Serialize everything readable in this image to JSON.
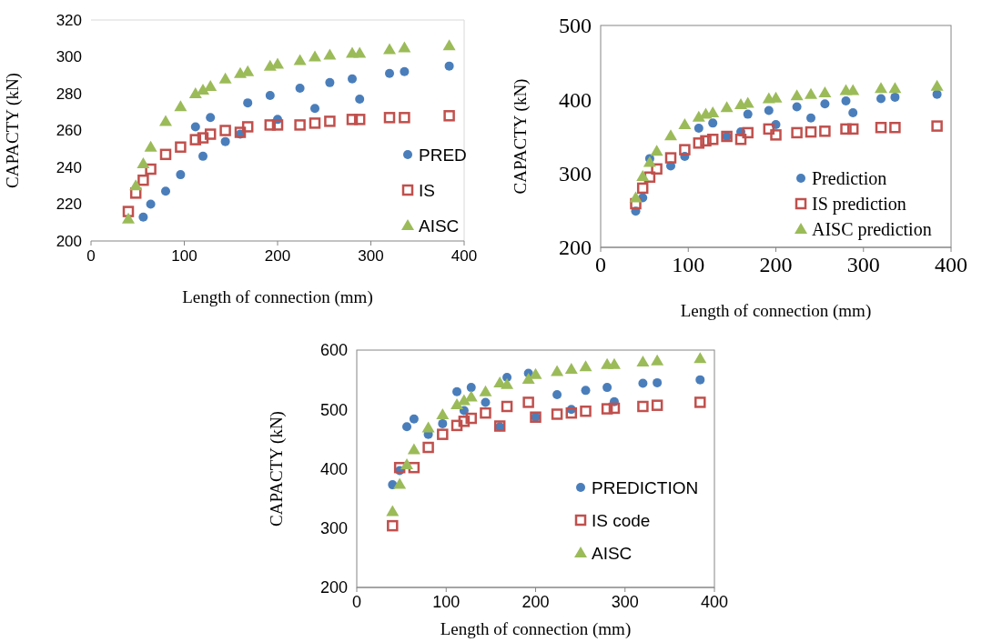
{
  "chart_data": [
    {
      "type": "scatter",
      "xlabel": "Length of connection (mm)",
      "ylabel": "CAPACTY (kN)",
      "xlim": [
        0,
        400
      ],
      "xticks": [
        0,
        100,
        200,
        300,
        400
      ],
      "ylim": [
        200,
        320
      ],
      "yticks": [
        200,
        220,
        240,
        260,
        280,
        300,
        320
      ],
      "legend": "bottom right",
      "grid": false,
      "series": [
        {
          "name": "PRED",
          "color": "#4a7ebb",
          "marker": "circle",
          "x": [
            56,
            64,
            80,
            96,
            112,
            120,
            128,
            144,
            160,
            168,
            192,
            200,
            224,
            240,
            256,
            280,
            288,
            320,
            336,
            384
          ],
          "values": [
            213,
            220,
            227,
            236,
            262,
            246,
            267,
            254,
            258,
            275,
            279,
            266,
            283,
            272,
            286,
            288,
            277,
            291,
            292,
            295
          ]
        },
        {
          "name": "IS",
          "color": "#c0504d",
          "marker": "square",
          "x": [
            40,
            48,
            56,
            64,
            80,
            96,
            112,
            120,
            128,
            144,
            160,
            168,
            192,
            200,
            224,
            240,
            256,
            280,
            288,
            320,
            336,
            384
          ],
          "values": [
            216,
            226,
            233,
            239,
            247,
            251,
            255,
            256,
            258,
            260,
            259,
            262,
            263,
            263,
            263,
            264,
            265,
            266,
            266,
            267,
            267,
            268
          ]
        },
        {
          "name": "AISC",
          "color": "#9bbb59",
          "marker": "triangle",
          "x": [
            40,
            48,
            56,
            64,
            80,
            96,
            112,
            120,
            128,
            144,
            160,
            168,
            192,
            200,
            224,
            240,
            256,
            280,
            288,
            320,
            336,
            384
          ],
          "values": [
            212,
            230,
            242,
            251,
            265,
            273,
            280,
            282,
            284,
            288,
            291,
            292,
            295,
            296,
            298,
            300,
            301,
            302,
            302,
            304,
            305,
            306
          ]
        }
      ]
    },
    {
      "type": "scatter",
      "xlabel": "Length of connection (mm)",
      "ylabel": "CAPACTY (kN)",
      "xlim": [
        0,
        400
      ],
      "xticks": [
        0,
        100,
        200,
        300,
        400
      ],
      "ylim": [
        200,
        500
      ],
      "yticks": [
        200,
        300,
        400,
        500
      ],
      "legend": "bottom right",
      "grid": false,
      "series": [
        {
          "name": "Prediction",
          "color": "#4a7ebb",
          "marker": "circle",
          "x": [
            40,
            48,
            56,
            80,
            96,
            112,
            128,
            144,
            160,
            168,
            192,
            200,
            224,
            240,
            256,
            280,
            288,
            320,
            336,
            384
          ],
          "values": [
            249,
            267,
            320,
            310,
            323,
            361,
            368,
            350,
            356,
            380,
            385,
            366,
            390,
            375,
            394,
            398,
            382,
            401,
            403,
            407
          ]
        },
        {
          "name": "IS prediction",
          "color": "#c0504d",
          "marker": "square",
          "x": [
            40,
            48,
            56,
            64,
            80,
            96,
            112,
            120,
            128,
            144,
            160,
            168,
            192,
            200,
            224,
            240,
            256,
            280,
            288,
            320,
            336,
            384
          ],
          "values": [
            259,
            280,
            295,
            306,
            321,
            332,
            341,
            344,
            346,
            350,
            346,
            355,
            360,
            352,
            355,
            356,
            357,
            360,
            360,
            362,
            362,
            364
          ]
        },
        {
          "name": "AISC prediction",
          "color": "#9bbb59",
          "marker": "triangle",
          "x": [
            40,
            48,
            56,
            64,
            80,
            96,
            112,
            120,
            128,
            144,
            160,
            168,
            192,
            200,
            224,
            240,
            256,
            280,
            288,
            320,
            336,
            384
          ],
          "values": [
            267,
            296,
            315,
            330,
            351,
            366,
            376,
            380,
            382,
            389,
            393,
            395,
            401,
            402,
            405,
            407,
            409,
            412,
            412,
            415,
            415,
            418
          ]
        }
      ]
    },
    {
      "type": "scatter",
      "xlabel": "Length of connection (mm)",
      "ylabel": "CAPACTY (kN)",
      "xlim": [
        0,
        400
      ],
      "xticks": [
        0,
        100,
        200,
        300,
        400
      ],
      "ylim": [
        200,
        600
      ],
      "yticks": [
        200,
        300,
        400,
        500,
        600
      ],
      "legend": "bottom right",
      "grid": false,
      "series": [
        {
          "name": "PREDICTION",
          "color": "#4a7ebb",
          "marker": "circle",
          "x": [
            40,
            48,
            56,
            64,
            80,
            96,
            112,
            120,
            128,
            144,
            160,
            168,
            192,
            200,
            224,
            240,
            256,
            280,
            288,
            320,
            336,
            384
          ],
          "values": [
            373,
            397,
            471,
            484,
            458,
            476,
            530,
            498,
            537,
            512,
            471,
            554,
            561,
            487,
            525,
            500,
            532,
            537,
            513,
            544,
            545,
            550
          ]
        },
        {
          "name": "IS code",
          "color": "#c0504d",
          "marker": "square",
          "x": [
            40,
            48,
            64,
            80,
            96,
            112,
            120,
            128,
            144,
            160,
            168,
            192,
            200,
            224,
            240,
            256,
            280,
            288,
            320,
            336,
            384
          ],
          "values": [
            304,
            402,
            402,
            436,
            458,
            473,
            480,
            485,
            494,
            472,
            505,
            512,
            487,
            492,
            494,
            497,
            501,
            502,
            505,
            507,
            512
          ]
        },
        {
          "name": "AISC",
          "color": "#9bbb59",
          "marker": "triangle",
          "x": [
            40,
            48,
            56,
            64,
            80,
            96,
            112,
            120,
            128,
            144,
            160,
            168,
            192,
            200,
            224,
            240,
            256,
            280,
            288,
            320,
            336,
            384
          ],
          "values": [
            328,
            374,
            407,
            432,
            469,
            491,
            508,
            515,
            521,
            530,
            545,
            542,
            551,
            559,
            564,
            568,
            572,
            576,
            576,
            580,
            582,
            586
          ]
        }
      ]
    }
  ]
}
